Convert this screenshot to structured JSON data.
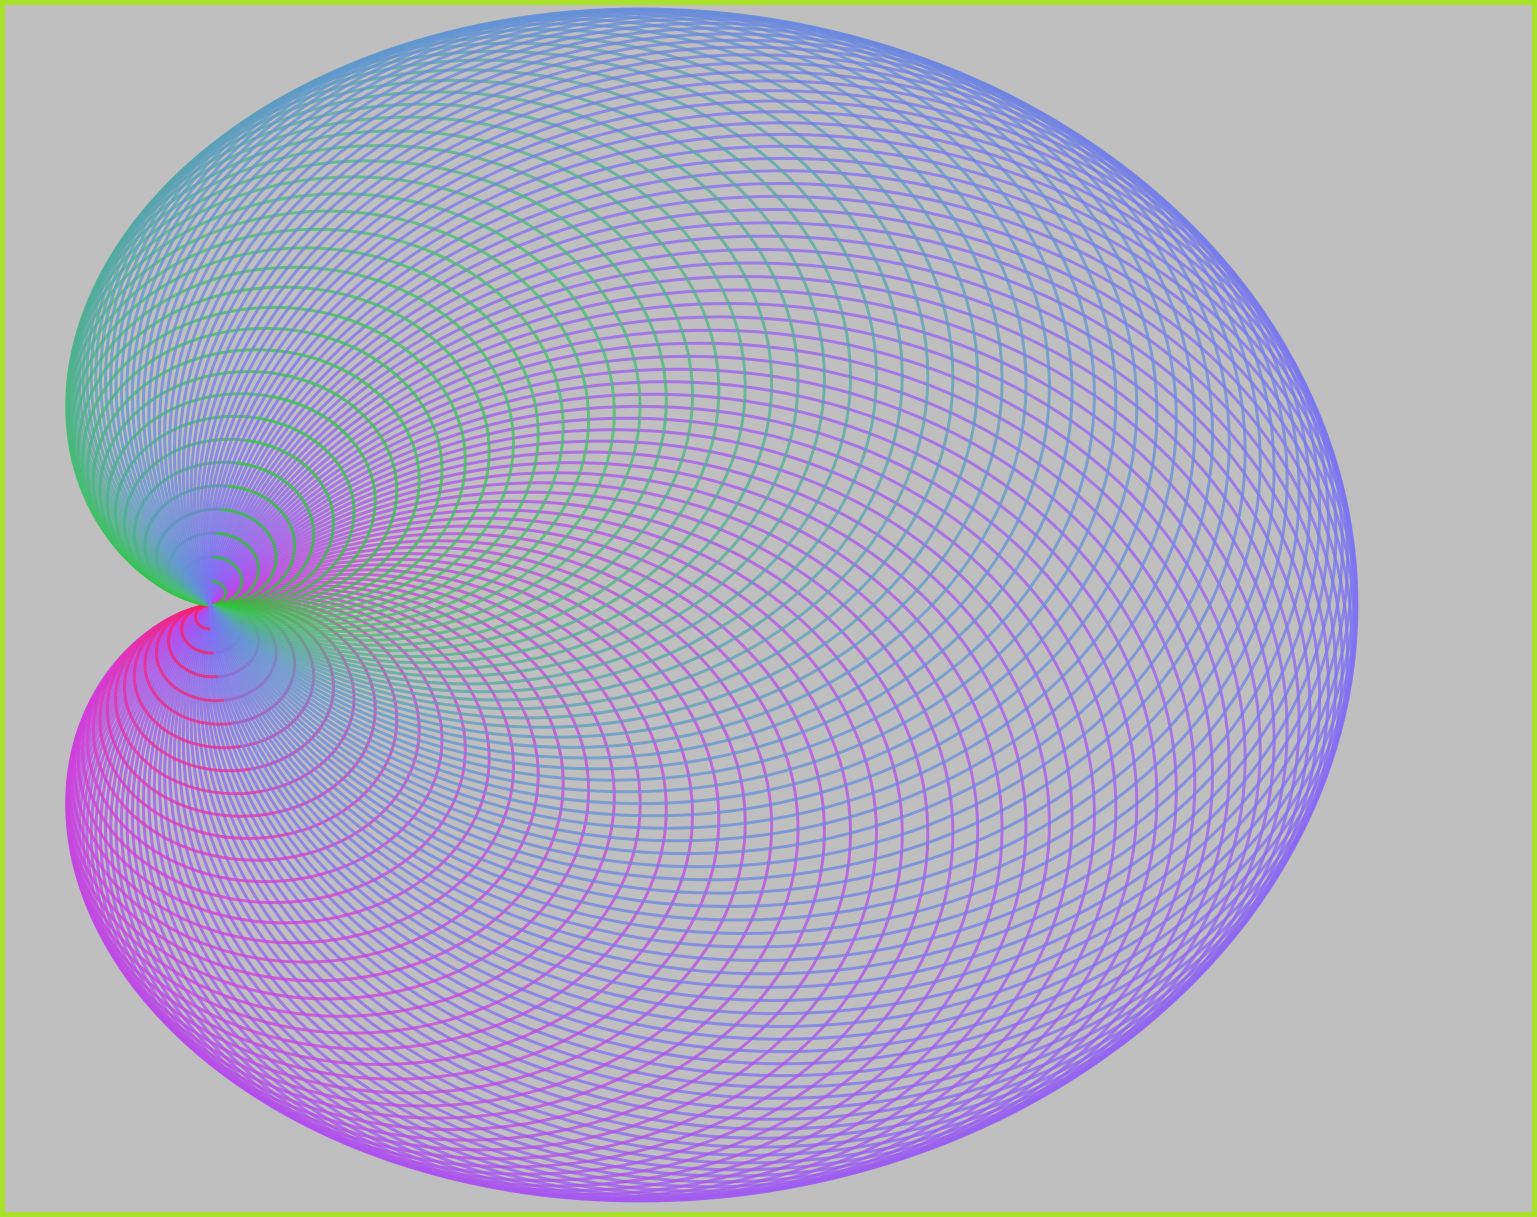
{
  "artwork": {
    "kind": "cardioid-circle-envelope",
    "description_icon": "cardioid-icon",
    "colors": {
      "background": "#bfbfbf",
      "frame_border": "#a8e22a",
      "palette": [
        "#ff1a4a",
        "#d23cd6",
        "#9a5cf0",
        "#7a78f2",
        "#5aa0c8",
        "#22c81e"
      ]
    }
  }
}
